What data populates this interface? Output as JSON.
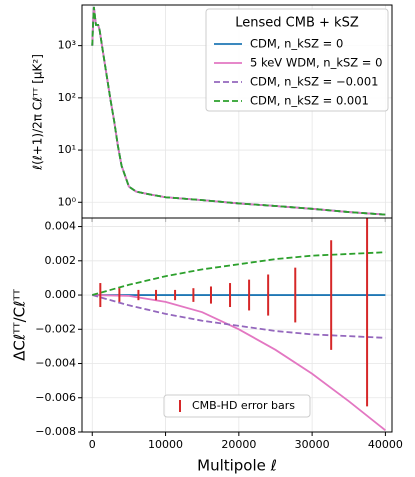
{
  "chart_data": [
    {
      "type": "line",
      "log_y": true,
      "grid": true,
      "ylabel": "ℓ(ℓ+1)/2π Cℓᵀᵀ [μK²]",
      "legend_title": "Lensed CMB + kSZ",
      "legend": "upper right",
      "xlim": [
        -1400,
        40900
      ],
      "xticks": [
        0,
        10000,
        20000,
        30000,
        40000
      ],
      "ylim": [
        0.5,
        6000
      ],
      "yticks": [
        {
          "value": 1,
          "label": "10⁰"
        },
        {
          "value": 10,
          "label": "10¹"
        },
        {
          "value": 100,
          "label": "10²"
        },
        {
          "value": 1000,
          "label": "10³"
        }
      ],
      "x": [
        2,
        100,
        220,
        500,
        800,
        1000,
        1500,
        2000,
        2500,
        3000,
        3500,
        4000,
        5000,
        6000,
        8000,
        10000,
        15000,
        20000,
        25000,
        30000,
        35000,
        40000
      ],
      "series": [
        {
          "name": "CDM, n_kSZ = 0",
          "color": "#1f77b4",
          "dash": false,
          "values": [
            1000,
            2500,
            5500,
            2500,
            2500,
            2000,
            700,
            250,
            90,
            35,
            12,
            5,
            2.0,
            1.6,
            1.4,
            1.25,
            1.1,
            0.95,
            0.85,
            0.75,
            0.65,
            0.58
          ]
        },
        {
          "name": "5 keV WDM, n_kSZ = 0",
          "color": "#e377c2",
          "dash": false,
          "values": [
            1000,
            2500,
            5500,
            2500,
            2500,
            2000,
            700,
            250,
            90,
            35,
            12,
            5,
            2.0,
            1.6,
            1.4,
            1.25,
            1.1,
            0.95,
            0.85,
            0.75,
            0.65,
            0.58
          ]
        },
        {
          "name": "CDM, n_kSZ = −0.001",
          "color": "#9467bd",
          "dash": true,
          "values": [
            1000,
            2500,
            5500,
            2500,
            2500,
            2000,
            700,
            250,
            90,
            35,
            12,
            5,
            2.0,
            1.6,
            1.4,
            1.25,
            1.1,
            0.95,
            0.85,
            0.75,
            0.65,
            0.58
          ]
        },
        {
          "name": "CDM, n_kSZ = 0.001",
          "color": "#2ca02c",
          "dash": true,
          "values": [
            1000,
            2500,
            5500,
            2500,
            2500,
            2000,
            700,
            250,
            90,
            35,
            12,
            5,
            2.0,
            1.6,
            1.4,
            1.25,
            1.1,
            0.95,
            0.85,
            0.75,
            0.65,
            0.58
          ]
        }
      ]
    },
    {
      "type": "line",
      "log_y": false,
      "grid": true,
      "xlabel": "Multipole ℓ",
      "ylabel": "ΔCℓᵀᵀ/Cℓᵀᵀ",
      "legend": "lower center",
      "xlim": [
        -1400,
        40900
      ],
      "xticks": [
        0,
        10000,
        20000,
        30000,
        40000
      ],
      "ylim": [
        -0.008,
        0.0045
      ],
      "yticks": [
        {
          "value": -0.008,
          "label": "−0.008"
        },
        {
          "value": -0.006,
          "label": "−0.006"
        },
        {
          "value": -0.004,
          "label": "−0.004"
        },
        {
          "value": -0.002,
          "label": "−0.002"
        },
        {
          "value": 0,
          "label": "0.000"
        },
        0.002,
        0.004
      ],
      "x": [
        0,
        5000,
        10000,
        15000,
        20000,
        25000,
        30000,
        35000,
        40000
      ],
      "series": [
        {
          "color": "#1f77b4",
          "dash": false,
          "values": [
            0,
            0,
            0,
            0,
            0,
            0,
            0,
            0,
            0
          ]
        },
        {
          "color": "#e377c2",
          "dash": false,
          "values": [
            0,
            -5e-05,
            -0.0004,
            -0.001,
            -0.002,
            -0.0032,
            -0.0046,
            -0.0062,
            -0.0079
          ]
        },
        {
          "color": "#9467bd",
          "dash": true,
          "values": [
            0,
            -0.0006,
            -0.0011,
            -0.0015,
            -0.0018,
            -0.0021,
            -0.0023,
            -0.0024,
            -0.0025
          ]
        },
        {
          "color": "#2ca02c",
          "dash": true,
          "values": [
            0,
            0.0006,
            0.0011,
            0.0015,
            0.0018,
            0.0021,
            0.0023,
            0.0024,
            0.0025
          ]
        }
      ],
      "errorbars": {
        "name": "CMB-HD error bars",
        "color": "#d62728",
        "x": [
          1100,
          3700,
          6300,
          8700,
          11300,
          13800,
          16200,
          18800,
          21400,
          24000,
          27700,
          32600,
          37500
        ],
        "values": [
          0,
          0,
          0,
          0,
          0,
          0,
          0,
          0,
          0,
          0,
          0,
          0,
          0
        ],
        "errors": [
          0.0007,
          0.0004,
          0.0003,
          0.0003,
          0.0003,
          0.0004,
          0.0005,
          0.0007,
          0.0009,
          0.0012,
          0.0016,
          0.0032,
          0.0065
        ]
      }
    }
  ]
}
